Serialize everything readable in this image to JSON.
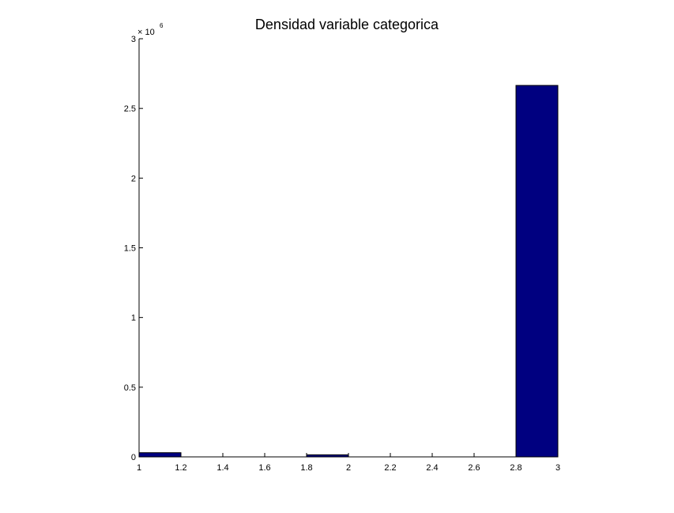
{
  "chart_data": {
    "type": "bar",
    "title": "Densidad variable categorica",
    "xlabel": "",
    "ylabel": "",
    "xlim": [
      1,
      3
    ],
    "ylim": [
      0,
      3000000
    ],
    "y_exponent_label": "× 10",
    "y_exponent_power": "6",
    "xticks": [
      "1",
      "1.2",
      "1.4",
      "1.6",
      "1.8",
      "2",
      "2.2",
      "2.4",
      "2.6",
      "2.8",
      "3"
    ],
    "yticks": [
      "0",
      "0.5",
      "1",
      "1.5",
      "2",
      "2.5",
      "3"
    ],
    "bars": [
      {
        "x0": 1.0,
        "x1": 1.2,
        "value": 30000
      },
      {
        "x0": 1.8,
        "x1": 2.0,
        "value": 15000
      },
      {
        "x0": 2.8,
        "x1": 3.0,
        "value": 2665000
      }
    ],
    "bar_color": "#000080",
    "bar_edge_color": "#000000",
    "grid": false
  }
}
